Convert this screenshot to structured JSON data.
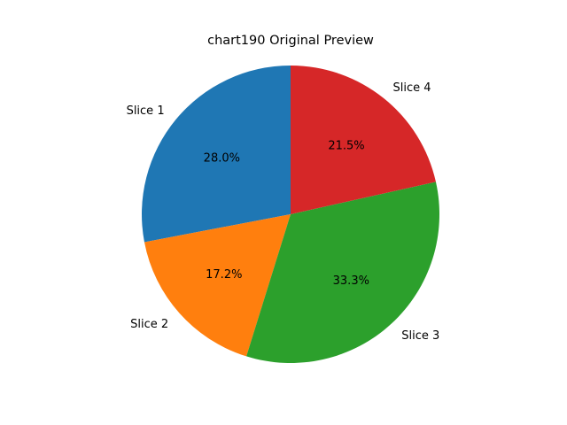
{
  "chart_data": {
    "type": "pie",
    "title": "chart190 Original Preview",
    "slices": [
      {
        "label": "Slice 1",
        "value": 28.0,
        "pct_label": "28.0%",
        "color": "#1f77b4"
      },
      {
        "label": "Slice 2",
        "value": 17.2,
        "pct_label": "17.2%",
        "color": "#ff7f0e"
      },
      {
        "label": "Slice 3",
        "value": 33.3,
        "pct_label": "33.3%",
        "color": "#2ca02c"
      },
      {
        "label": "Slice 4",
        "value": 21.5,
        "pct_label": "21.5%",
        "color": "#d62728"
      }
    ],
    "start_angle_deg": 90,
    "direction": "counterclockwise"
  }
}
